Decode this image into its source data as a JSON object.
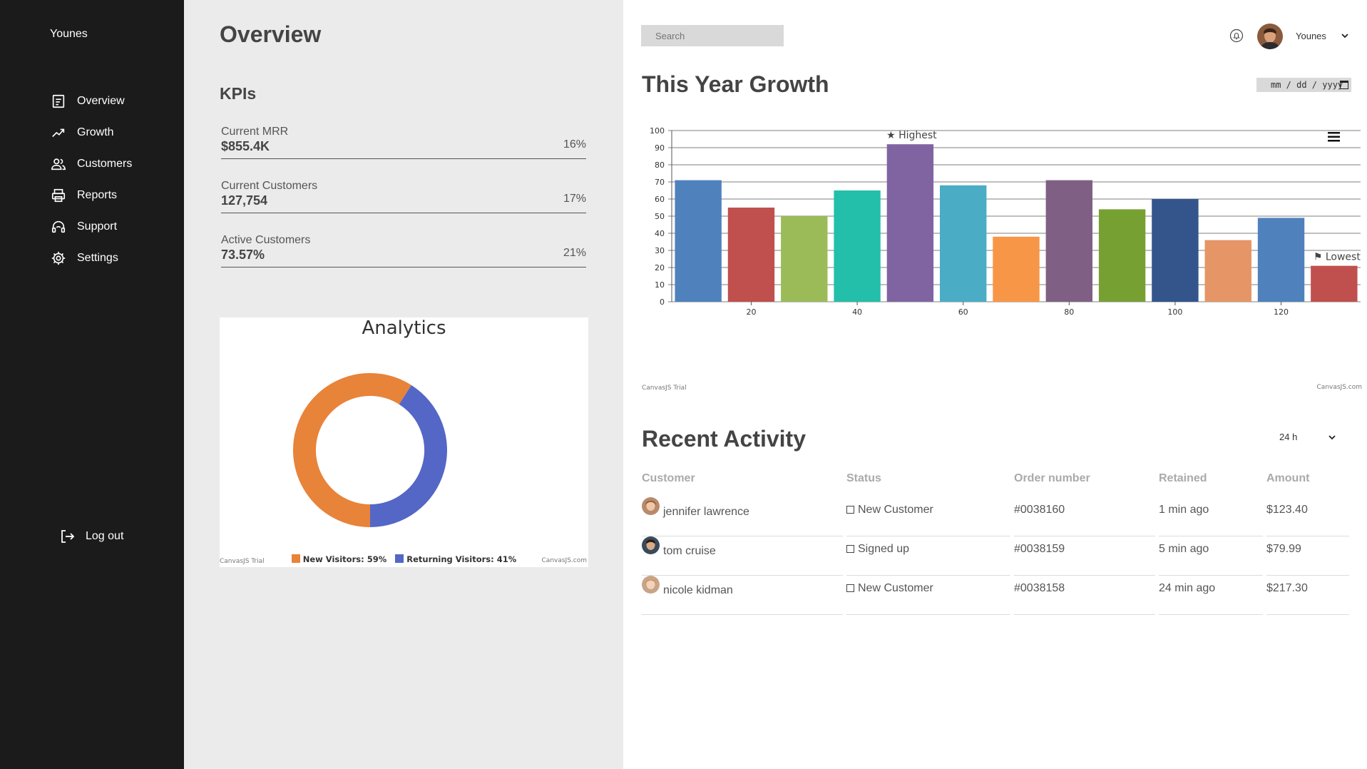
{
  "sidebar": {
    "brand": "Younes",
    "items": [
      {
        "label": "Overview",
        "icon": "document-icon"
      },
      {
        "label": "Growth",
        "icon": "trending-up-icon"
      },
      {
        "label": "Customers",
        "icon": "users-icon"
      },
      {
        "label": "Reports",
        "icon": "printer-icon"
      },
      {
        "label": "Support",
        "icon": "headset-icon"
      },
      {
        "label": "Settings",
        "icon": "gear-icon"
      }
    ],
    "logout": "Log out"
  },
  "overview": {
    "title": "Overview",
    "kpis_title": "KPIs",
    "kpis": [
      {
        "label": "Current MRR",
        "value": "$855.4K",
        "change": "16%"
      },
      {
        "label": "Current Customers",
        "value": "127,754",
        "change": "17%"
      },
      {
        "label": "Active Customers",
        "value": "73.57%",
        "change": "21%"
      }
    ]
  },
  "analytics": {
    "title": "Analytics",
    "credit_left": "CanvasJS Trial",
    "credit_right": "CanvasJS.com",
    "legend": [
      {
        "label": "New Visitors: 59%",
        "color": "#E8833A"
      },
      {
        "label": "Returning Visitors: 41%",
        "color": "#5467C6"
      }
    ]
  },
  "header": {
    "search_placeholder": "Search",
    "username": "Younes",
    "date_placeholder": "mm / dd / yyyy"
  },
  "growth": {
    "title": "This Year Growth",
    "credit_left": "CanvasJS Trial",
    "credit_right": "CanvasJS.com",
    "highest_label": "★ Highest",
    "lowest_label": "⚑ Lowest"
  },
  "activity": {
    "title": "Recent Activity",
    "range": "24 h",
    "columns": [
      "Customer",
      "Status",
      "Order number",
      "Retained",
      "Amount"
    ],
    "rows": [
      {
        "customer": "jennifer lawrence",
        "status": "New Customer",
        "order": "#0038160",
        "retained": "1 min ago",
        "amount": "$123.40"
      },
      {
        "customer": "tom cruise",
        "status": "Signed up",
        "order": "#0038159",
        "retained": "5 min ago",
        "amount": "$79.99"
      },
      {
        "customer": "nicole kidman",
        "status": "New Customer",
        "order": "#0038158",
        "retained": "24 min ago",
        "amount": "$217.30"
      }
    ]
  },
  "chart_data": [
    {
      "type": "pie",
      "title": "Analytics",
      "categories": [
        "New Visitors",
        "Returning Visitors"
      ],
      "values": [
        59,
        41
      ],
      "colors": [
        "#E8833A",
        "#5467C6"
      ],
      "legend": "bottom"
    },
    {
      "type": "bar",
      "title": "This Year Growth",
      "x": [
        10,
        20,
        30,
        40,
        50,
        60,
        70,
        80,
        90,
        100,
        110,
        120,
        130
      ],
      "values": [
        71,
        55,
        50,
        65,
        92,
        68,
        38,
        71,
        54,
        60,
        36,
        49,
        21
      ],
      "colors": [
        "#4F81BC",
        "#C0504E",
        "#9BBB58",
        "#23BFAA",
        "#8064A1",
        "#4AACC5",
        "#F79647",
        "#7F6084",
        "#77A033",
        "#33558B",
        "#E59566",
        "#4F81BC",
        "#C0504E"
      ],
      "xticks": [
        20,
        40,
        60,
        80,
        100,
        120
      ],
      "ylim": [
        0,
        100
      ],
      "yticks": [
        0,
        10,
        20,
        30,
        40,
        50,
        60,
        70,
        80,
        90,
        100
      ],
      "grid": true
    }
  ]
}
